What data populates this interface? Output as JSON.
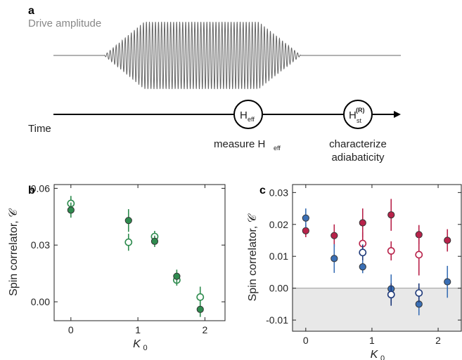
{
  "panel_a": {
    "label": "a",
    "drive_label": "Drive amplitude",
    "time_label": "Time",
    "heff_circle": {
      "main": "H",
      "sub": "eff"
    },
    "hst_circle": {
      "main": "H",
      "sub": "st",
      "sup": "(R)"
    },
    "measure_text": {
      "main": "measure H",
      "sub": "eff"
    },
    "characterize_line1": "characterize",
    "characterize_line2": "adiabaticity"
  },
  "chart_data": [
    {
      "type": "scatter",
      "label": "b",
      "xlabel": "K",
      "xlabel_sub": "0",
      "ylabel": "Spin correlator, 𝒞",
      "xlim": [
        -0.25,
        2.3
      ],
      "ylim": [
        -0.01,
        0.062
      ],
      "xticks": [
        0,
        1,
        2
      ],
      "yticks": [
        0.0,
        0.03,
        0.06
      ],
      "ytick_labels": [
        "0.00",
        "0.03",
        "0.06"
      ],
      "series": [
        {
          "style": "open",
          "color": "#2e8b4e",
          "points": [
            {
              "x": 0.0,
              "y": 0.052,
              "err": 0.004
            },
            {
              "x": 0.86,
              "y": 0.0315,
              "err": 0.0045
            },
            {
              "x": 1.25,
              "y": 0.0345,
              "err": 0.003
            },
            {
              "x": 1.58,
              "y": 0.0115,
              "err": 0.003
            },
            {
              "x": 1.93,
              "y": 0.0025,
              "err": 0.0055
            }
          ]
        },
        {
          "style": "filled",
          "color": "#2e8b4e",
          "points": [
            {
              "x": 0.0,
              "y": 0.0485,
              "err": 0.004
            },
            {
              "x": 0.86,
              "y": 0.043,
              "err": 0.006
            },
            {
              "x": 1.25,
              "y": 0.032,
              "err": 0.003
            },
            {
              "x": 1.58,
              "y": 0.0135,
              "err": 0.0035
            },
            {
              "x": 1.93,
              "y": -0.004,
              "err": 0.004
            }
          ]
        }
      ]
    },
    {
      "type": "scatter",
      "label": "c",
      "xlabel": "K",
      "xlabel_sub": "0",
      "ylabel": "Spin correlator, 𝒞",
      "xlim": [
        -0.2,
        2.35
      ],
      "ylim": [
        -0.0135,
        0.0325
      ],
      "xticks": [
        0,
        1,
        2
      ],
      "yticks": [
        -0.01,
        0.0,
        0.01,
        0.02,
        0.03
      ],
      "ytick_labels": [
        "-0.01",
        "0.00",
        "0.01",
        "0.02",
        "0.03"
      ],
      "shade_below": 0.0,
      "shade_color": "#e8e8e8",
      "series": [
        {
          "style": "filled",
          "color": "#b8224a",
          "points": [
            {
              "x": 0.0,
              "y": 0.018,
              "err": 0.002
            },
            {
              "x": 0.43,
              "y": 0.0165,
              "err": 0.0035
            },
            {
              "x": 0.86,
              "y": 0.0205,
              "err": 0.0045
            },
            {
              "x": 1.29,
              "y": 0.023,
              "err": 0.005
            },
            {
              "x": 1.71,
              "y": 0.0168,
              "err": 0.003
            },
            {
              "x": 2.14,
              "y": 0.015,
              "err": 0.0035
            }
          ]
        },
        {
          "style": "open",
          "color": "#b8224a",
          "points": [
            {
              "x": 0.86,
              "y": 0.014,
              "err": 0.0035
            },
            {
              "x": 1.29,
              "y": 0.0117,
              "err": 0.003
            },
            {
              "x": 1.71,
              "y": 0.0105,
              "err": 0.0065
            }
          ]
        },
        {
          "style": "filled",
          "color": "#3a6fb5",
          "points": [
            {
              "x": 0.0,
              "y": 0.022,
              "err": 0.003
            },
            {
              "x": 0.43,
              "y": 0.0093,
              "err": 0.0045
            },
            {
              "x": 0.86,
              "y": 0.0067,
              "err": 0.002
            },
            {
              "x": 1.29,
              "y": -0.0002,
              "err": 0.0045
            },
            {
              "x": 1.71,
              "y": -0.005,
              "err": 0.0035
            },
            {
              "x": 2.14,
              "y": 0.002,
              "err": 0.005
            }
          ]
        },
        {
          "style": "open",
          "color": "#1f3a7a",
          "points": [
            {
              "x": 0.86,
              "y": 0.0112,
              "err": 0.0025
            },
            {
              "x": 1.29,
              "y": -0.002,
              "err": 0.0035
            },
            {
              "x": 1.71,
              "y": -0.0015,
              "err": 0.003
            }
          ]
        }
      ]
    }
  ]
}
